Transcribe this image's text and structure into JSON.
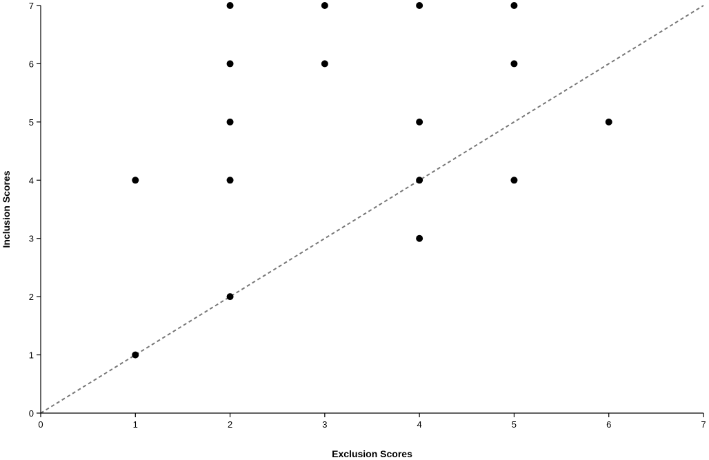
{
  "chart_data": {
    "type": "scatter",
    "xlabel": "Exclusion Scores",
    "ylabel": "Inclusion Scores",
    "xlim": [
      0,
      7
    ],
    "ylim": [
      0,
      7
    ],
    "x_ticks": [
      "0",
      "1",
      "2",
      "3",
      "4",
      "5",
      "6",
      "7"
    ],
    "y_ticks": [
      "0",
      "1",
      "2",
      "3",
      "4",
      "5",
      "6",
      "7"
    ],
    "grid": false,
    "legend": "none",
    "reference_line": {
      "x": [
        0,
        7
      ],
      "y": [
        0,
        7
      ],
      "style": "dashed",
      "color": "#777777"
    },
    "marker_color": "#000000",
    "points": [
      {
        "x": 1,
        "y": 1
      },
      {
        "x": 1,
        "y": 4
      },
      {
        "x": 2,
        "y": 2
      },
      {
        "x": 2,
        "y": 4
      },
      {
        "x": 2,
        "y": 5
      },
      {
        "x": 2,
        "y": 6
      },
      {
        "x": 2,
        "y": 7
      },
      {
        "x": 3,
        "y": 6
      },
      {
        "x": 3,
        "y": 7
      },
      {
        "x": 4,
        "y": 3
      },
      {
        "x": 4,
        "y": 4
      },
      {
        "x": 4,
        "y": 5
      },
      {
        "x": 4,
        "y": 7
      },
      {
        "x": 5,
        "y": 4
      },
      {
        "x": 5,
        "y": 6
      },
      {
        "x": 5,
        "y": 7
      },
      {
        "x": 6,
        "y": 5
      }
    ]
  }
}
